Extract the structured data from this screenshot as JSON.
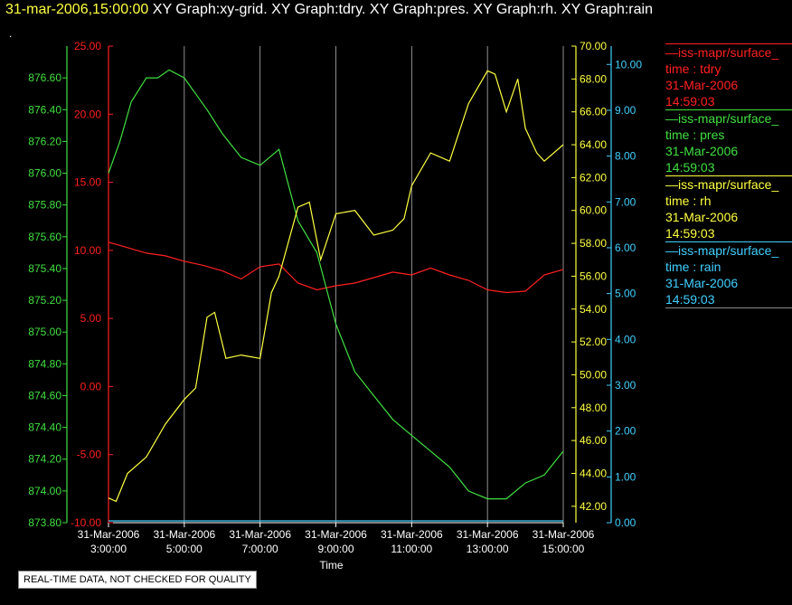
{
  "header": {
    "timestamp": "31-mar-2006,15:00:00",
    "graphs": [
      "XY Graph:xy-grid.",
      "XY Graph:tdry.",
      "XY Graph:pres.",
      "XY Graph:rh.",
      "XY Graph:rain"
    ],
    "dot": "."
  },
  "legend": [
    {
      "name": "iss-mapr/surface_",
      "field": "time : tdry",
      "date": "31-Mar-2006",
      "time": "14:59:03",
      "color": "#ff2020"
    },
    {
      "name": "iss-mapr/surface_",
      "field": "time : pres",
      "date": "31-Mar-2006",
      "time": "14:59:03",
      "color": "#40e040"
    },
    {
      "name": "iss-mapr/surface_",
      "field": "time : rh",
      "date": "31-Mar-2006",
      "time": "14:59:03",
      "color": "#ffff40"
    },
    {
      "name": "iss-mapr/surface_",
      "field": "time : rain",
      "date": "31-Mar-2006",
      "time": "14:59:03",
      "color": "#40d0ff"
    }
  ],
  "notice": "REAL-TIME DATA, NOT CHECKED FOR QUALITY",
  "chart_data": {
    "type": "line",
    "xlabel": "Time",
    "x_ticks": [
      [
        "31-Mar-2006",
        "3:00:00"
      ],
      [
        "31-Mar-2006",
        "5:00:00"
      ],
      [
        "31-Mar-2006",
        "7:00:00"
      ],
      [
        "31-Mar-2006",
        "9:00:00"
      ],
      [
        "31-Mar-2006",
        "11:00:00"
      ],
      [
        "31-Mar-2006",
        "13:00:00"
      ],
      [
        "31-Mar-2006",
        "15:00:00"
      ]
    ],
    "xlim": [
      3,
      15
    ],
    "grid": true,
    "axes": {
      "tdry": {
        "ylim": [
          -10,
          25
        ],
        "ticks": [
          "25.00",
          "20.00",
          "15.00",
          "10.00",
          "5.00",
          "0.00",
          "-5.00",
          "-10.00"
        ],
        "color": "#ff2020"
      },
      "pres": {
        "ylim": [
          873.8,
          876.8
        ],
        "ticks": [
          "876.60",
          "876.40",
          "876.20",
          "876.00",
          "875.80",
          "875.60",
          "875.40",
          "875.20",
          "875.00",
          "874.80",
          "874.60",
          "874.40",
          "874.20",
          "874.00",
          "873.80"
        ],
        "color": "#40e040"
      },
      "rh": {
        "ylim": [
          41,
          70
        ],
        "ticks": [
          "70.00",
          "68.00",
          "66.00",
          "64.00",
          "62.00",
          "60.00",
          "58.00",
          "56.00",
          "54.00",
          "52.00",
          "50.00",
          "48.00",
          "46.00",
          "44.00",
          "42.00"
        ],
        "color": "#ffff40"
      },
      "rain": {
        "ylim": [
          0,
          10.4
        ],
        "ticks": [
          "10.00",
          "9.00",
          "8.00",
          "7.00",
          "6.00",
          "5.00",
          "4.00",
          "3.00",
          "2.00",
          "1.00",
          "0.00"
        ],
        "color": "#40d0ff"
      }
    },
    "series": [
      {
        "axis": "tdry",
        "x": [
          3,
          3.5,
          4,
          4.5,
          5,
          5.5,
          6,
          6.5,
          7,
          7.5,
          8,
          8.5,
          9,
          9.5,
          10,
          10.5,
          11,
          11.5,
          12,
          12.5,
          13,
          13.5,
          14,
          14.5,
          15
        ],
        "y": [
          10.6,
          10.2,
          9.8,
          9.6,
          9.2,
          8.9,
          8.5,
          7.9,
          8.8,
          9.0,
          7.6,
          7.1,
          7.4,
          7.6,
          8.0,
          8.4,
          8.2,
          8.7,
          8.2,
          7.8,
          7.1,
          6.9,
          7.0,
          8.2,
          8.6
        ]
      },
      {
        "axis": "pres",
        "x": [
          3,
          3.3,
          3.6,
          4,
          4.3,
          4.6,
          5,
          5.3,
          5.6,
          6,
          6.5,
          7,
          7.5,
          8,
          8.5,
          9,
          9.5,
          10,
          10.5,
          11,
          11.5,
          12,
          12.5,
          13,
          13.5,
          14,
          14.5,
          15
        ],
        "y": [
          876.0,
          876.2,
          876.45,
          876.6,
          876.6,
          876.65,
          876.6,
          876.5,
          876.4,
          876.25,
          876.1,
          876.05,
          876.15,
          875.7,
          875.5,
          875.05,
          874.75,
          874.6,
          874.45,
          874.35,
          874.25,
          874.15,
          874.0,
          873.95,
          873.95,
          874.05,
          874.1,
          874.25
        ]
      },
      {
        "axis": "rh",
        "x": [
          3,
          3.2,
          3.5,
          4,
          4.5,
          5,
          5.3,
          5.6,
          5.8,
          6.1,
          6.5,
          7,
          7.3,
          7.5,
          8,
          8.3,
          8.6,
          9,
          9.5,
          10,
          10.5,
          10.8,
          11,
          11.5,
          12,
          12.5,
          13,
          13.2,
          13.5,
          13.8,
          14,
          14.3,
          14.5,
          15
        ],
        "y": [
          42.5,
          42.3,
          44.0,
          45.0,
          47.0,
          48.5,
          49.2,
          53.5,
          53.8,
          51.0,
          51.2,
          51.0,
          55.0,
          56.0,
          60.2,
          60.5,
          57.0,
          59.8,
          60.0,
          58.5,
          58.8,
          59.5,
          61.5,
          63.5,
          63.0,
          66.5,
          68.5,
          68.3,
          66.0,
          68.0,
          65.0,
          63.5,
          63.0,
          64.0
        ]
      },
      {
        "axis": "rain",
        "x": [
          3,
          15
        ],
        "y": [
          0.04,
          0.04
        ]
      }
    ]
  }
}
